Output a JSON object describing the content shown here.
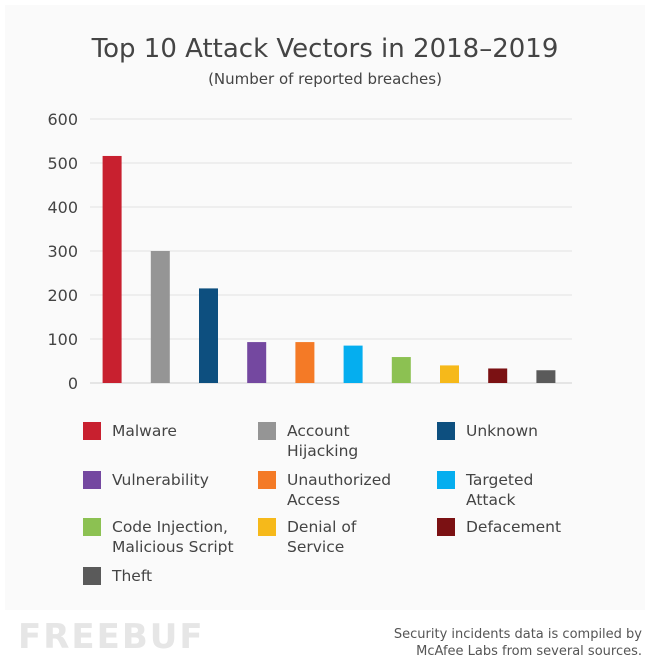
{
  "chart_data": {
    "type": "bar",
    "title": "Top 10 Attack Vectors in 2018–2019",
    "subtitle": "(Number of reported breaches)",
    "categories": [
      "Malware",
      "Account Hijacking",
      "Unknown",
      "Vulnerability",
      "Unauthorized Access",
      "Targeted Attack",
      "Code Injection, Malicious Script",
      "Denial of Service",
      "Defacement",
      "Theft"
    ],
    "legend_lines": [
      [
        "Malware"
      ],
      [
        "Account",
        "Hijacking"
      ],
      [
        "Unknown"
      ],
      [
        "Vulnerability"
      ],
      [
        "Unauthorized",
        "Access"
      ],
      [
        "Targeted",
        "Attack"
      ],
      [
        "Code Injection,",
        "Malicious Script"
      ],
      [
        "Denial of",
        "Service"
      ],
      [
        "Defacement"
      ],
      [
        "Theft"
      ]
    ],
    "values": [
      516,
      300,
      215,
      93,
      93,
      85,
      59,
      40,
      33,
      29
    ],
    "colors": [
      "#c8202f",
      "#959595",
      "#0d4f7f",
      "#7448a0",
      "#f47a26",
      "#05aeef",
      "#8cc152",
      "#f6b91a",
      "#7b1113",
      "#5a5a5a"
    ],
    "yticks": [
      0,
      100,
      200,
      300,
      400,
      500,
      600
    ],
    "ylim": [
      0,
      600
    ],
    "xlabel": "",
    "ylabel": "",
    "grid": true,
    "legend_position": "bottom"
  },
  "footnote": [
    "Security incidents data is compiled by",
    "McAfee Labs from several sources."
  ],
  "watermark": "FREEBUF"
}
